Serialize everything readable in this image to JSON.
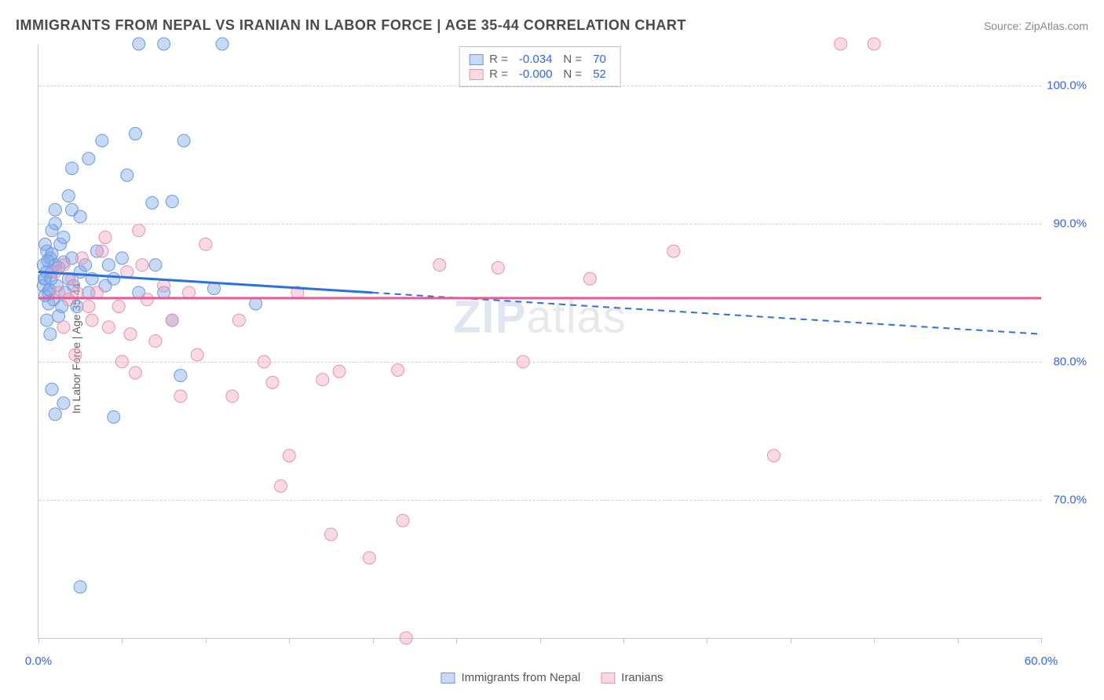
{
  "title": "IMMIGRANTS FROM NEPAL VS IRANIAN IN LABOR FORCE | AGE 35-44 CORRELATION CHART",
  "source": "Source: ZipAtlas.com",
  "ylabel": "In Labor Force | Age 35-44",
  "watermark_prefix": "ZIP",
  "watermark_suffix": "atlas",
  "chart": {
    "type": "scatter",
    "xlim": [
      0,
      60
    ],
    "ylim": [
      60,
      103
    ],
    "xticks": [
      0,
      5,
      10,
      15,
      20,
      25,
      30,
      35,
      40,
      45,
      50,
      55,
      60
    ],
    "xtick_labels": {
      "0": "0.0%",
      "60": "60.0%"
    },
    "yticks": [
      70,
      80,
      90,
      100
    ],
    "ytick_labels": {
      "70": "70.0%",
      "80": "80.0%",
      "90": "90.0%",
      "100": "100.0%"
    },
    "grid_color": "#d0d0d0",
    "axis_color": "#c8c8c8",
    "background_color": "#ffffff",
    "point_radius": 8,
    "series": [
      {
        "name": "Immigrants from Nepal",
        "fill": "rgba(130,170,230,0.45)",
        "stroke": "#6c9ae0",
        "trend_color": "#2c6fe0",
        "trend_solid_to_x": 20,
        "trend_y0": 86.5,
        "trend_y60": 82.0,
        "R": "-0.034",
        "N": "70",
        "points": [
          [
            0.3,
            87
          ],
          [
            0.4,
            86
          ],
          [
            0.5,
            88
          ],
          [
            0.6,
            85
          ],
          [
            0.7,
            87.5
          ],
          [
            0.8,
            86.5
          ],
          [
            0.9,
            84.5
          ],
          [
            1.0,
            87
          ],
          [
            1.1,
            85.5
          ],
          [
            1.2,
            86.8
          ],
          [
            1.3,
            88.5
          ],
          [
            1.0,
            90
          ],
          [
            1.4,
            84
          ],
          [
            1.5,
            87.2
          ],
          [
            1.6,
            85
          ],
          [
            1.8,
            86
          ],
          [
            2.0,
            87.5
          ],
          [
            1.0,
            91
          ],
          [
            2.1,
            85.5
          ],
          [
            2.3,
            84
          ],
          [
            2.5,
            86.5
          ],
          [
            0.8,
            89.5
          ],
          [
            2.0,
            91
          ],
          [
            2.8,
            87
          ],
          [
            3.0,
            85
          ],
          [
            1.5,
            89
          ],
          [
            3.2,
            86
          ],
          [
            1.8,
            92
          ],
          [
            3.5,
            88
          ],
          [
            4.0,
            85.5
          ],
          [
            4.2,
            87
          ],
          [
            2.0,
            94
          ],
          [
            4.5,
            86
          ],
          [
            2.5,
            90.5
          ],
          [
            5.0,
            87.5
          ],
          [
            5.3,
            93.5
          ],
          [
            6.0,
            85
          ],
          [
            5.8,
            96.5
          ],
          [
            6.8,
            91.5
          ],
          [
            7.0,
            87
          ],
          [
            6.0,
            103
          ],
          [
            7.5,
            85
          ],
          [
            8.0,
            83
          ],
          [
            8.5,
            79
          ],
          [
            8.0,
            91.6
          ],
          [
            8.7,
            96
          ],
          [
            3.0,
            94.7
          ],
          [
            1.5,
            77
          ],
          [
            0.8,
            78
          ],
          [
            1.0,
            76.2
          ],
          [
            4.5,
            76
          ],
          [
            7.5,
            103
          ],
          [
            10.5,
            85.3
          ],
          [
            13.0,
            84.2
          ],
          [
            11.0,
            103
          ],
          [
            3.8,
            96
          ],
          [
            0.5,
            83
          ],
          [
            0.7,
            82
          ],
          [
            1.2,
            83.3
          ],
          [
            0.4,
            88.5
          ],
          [
            0.3,
            85.5
          ],
          [
            0.6,
            84.2
          ],
          [
            0.5,
            86.5
          ],
          [
            0.4,
            84.8
          ],
          [
            0.8,
            87.8
          ],
          [
            0.35,
            86.0
          ],
          [
            0.55,
            87.3
          ],
          [
            0.65,
            85.2
          ],
          [
            0.75,
            86.0
          ],
          [
            2.5,
            63.7
          ]
        ]
      },
      {
        "name": "Iranians",
        "fill": "rgba(240,160,185,0.40)",
        "stroke": "#e593b0",
        "trend_color": "#e05d95",
        "trend_solid_to_x": 60,
        "trend_y0": 84.6,
        "trend_y60": 84.6,
        "R": "-0.000",
        "N": "52",
        "points": [
          [
            1.0,
            86.5
          ],
          [
            1.2,
            85
          ],
          [
            1.5,
            87
          ],
          [
            1.8,
            84.5
          ],
          [
            2.0,
            86
          ],
          [
            2.3,
            85
          ],
          [
            2.6,
            87.5
          ],
          [
            3.0,
            84
          ],
          [
            3.5,
            85
          ],
          [
            3.8,
            88
          ],
          [
            4.2,
            82.5
          ],
          [
            4.8,
            84
          ],
          [
            5.3,
            86.5
          ],
          [
            5.5,
            82
          ],
          [
            6.0,
            89.5
          ],
          [
            6.5,
            84.5
          ],
          [
            7.0,
            81.5
          ],
          [
            7.5,
            85.5
          ],
          [
            8.0,
            83
          ],
          [
            8.5,
            77.5
          ],
          [
            9.0,
            85
          ],
          [
            9.5,
            80.5
          ],
          [
            10.0,
            88.5
          ],
          [
            11.6,
            77.5
          ],
          [
            12.0,
            83
          ],
          [
            13.5,
            80
          ],
          [
            14.5,
            71
          ],
          [
            14.0,
            78.5
          ],
          [
            15.0,
            73.2
          ],
          [
            15.5,
            85
          ],
          [
            17.0,
            78.7
          ],
          [
            17.5,
            67.5
          ],
          [
            18.0,
            79.3
          ],
          [
            19.8,
            65.8
          ],
          [
            21.5,
            79.4
          ],
          [
            21.8,
            68.5
          ],
          [
            22.0,
            60
          ],
          [
            24.0,
            87
          ],
          [
            27.5,
            86.8
          ],
          [
            29.0,
            80
          ],
          [
            33.0,
            86.0
          ],
          [
            38.0,
            88
          ],
          [
            44.0,
            73.2
          ],
          [
            48.0,
            103
          ],
          [
            50.0,
            103
          ],
          [
            4.0,
            89
          ],
          [
            5.0,
            80
          ],
          [
            5.8,
            79.2
          ],
          [
            6.2,
            87
          ],
          [
            3.2,
            83
          ],
          [
            2.2,
            80.5
          ],
          [
            1.5,
            82.5
          ]
        ]
      }
    ]
  },
  "legend_top": [
    {
      "swatch_fill": "rgba(130,170,230,0.45)",
      "swatch_stroke": "#6c9ae0",
      "R": "-0.034",
      "N": "70"
    },
    {
      "swatch_fill": "rgba(240,160,185,0.40)",
      "swatch_stroke": "#e593b0",
      "R": "-0.000",
      "N": "52"
    }
  ],
  "legend_bottom": [
    {
      "swatch_fill": "rgba(130,170,230,0.45)",
      "swatch_stroke": "#6c9ae0",
      "label": "Immigrants from Nepal"
    },
    {
      "swatch_fill": "rgba(240,160,185,0.40)",
      "swatch_stroke": "#e593b0",
      "label": "Iranians"
    }
  ]
}
